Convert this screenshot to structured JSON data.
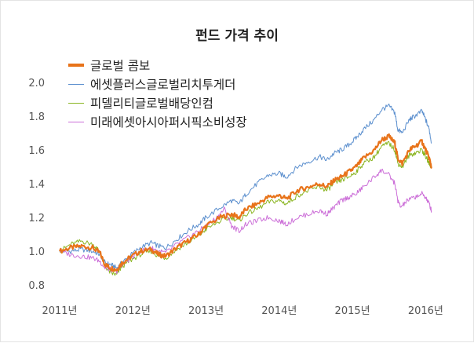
{
  "chart_data": {
    "type": "line",
    "title": "펀드 가격 추이",
    "xlabel": "",
    "ylabel": "",
    "x_ticks": [
      "2011년",
      "2012년",
      "2013년",
      "2014년",
      "2015년",
      "2016년"
    ],
    "y_ticks": [
      "2.0",
      "1.8",
      "1.6",
      "1.4",
      "1.2",
      "1.0",
      "0.8"
    ],
    "ylim": [
      0.8,
      2.0
    ],
    "xlim": [
      2011.0,
      2016.2
    ],
    "legend_position": "top-left",
    "grid": false,
    "series": [
      {
        "name": "글로벌 콤보",
        "color": "#e8731a",
        "width": 2.2,
        "points": [
          [
            2011.0,
            1.0
          ],
          [
            2011.15,
            1.02
          ],
          [
            2011.3,
            1.03
          ],
          [
            2011.45,
            1.02
          ],
          [
            2011.55,
            0.99
          ],
          [
            2011.62,
            0.92
          ],
          [
            2011.7,
            0.9
          ],
          [
            2011.78,
            0.89
          ],
          [
            2011.85,
            0.93
          ],
          [
            2011.95,
            0.96
          ],
          [
            2012.1,
            1.0
          ],
          [
            2012.25,
            1.01
          ],
          [
            2012.35,
            0.98
          ],
          [
            2012.45,
            0.97
          ],
          [
            2012.6,
            1.02
          ],
          [
            2012.75,
            1.06
          ],
          [
            2012.9,
            1.1
          ],
          [
            2013.0,
            1.15
          ],
          [
            2013.2,
            1.2
          ],
          [
            2013.35,
            1.22
          ],
          [
            2013.45,
            1.2
          ],
          [
            2013.55,
            1.25
          ],
          [
            2013.7,
            1.28
          ],
          [
            2013.85,
            1.32
          ],
          [
            2014.0,
            1.33
          ],
          [
            2014.1,
            1.31
          ],
          [
            2014.25,
            1.36
          ],
          [
            2014.4,
            1.38
          ],
          [
            2014.55,
            1.4
          ],
          [
            2014.65,
            1.38
          ],
          [
            2014.75,
            1.42
          ],
          [
            2014.85,
            1.44
          ],
          [
            2014.95,
            1.47
          ],
          [
            2015.05,
            1.5
          ],
          [
            2015.15,
            1.55
          ],
          [
            2015.3,
            1.6
          ],
          [
            2015.4,
            1.66
          ],
          [
            2015.5,
            1.68
          ],
          [
            2015.58,
            1.64
          ],
          [
            2015.62,
            1.55
          ],
          [
            2015.68,
            1.52
          ],
          [
            2015.78,
            1.6
          ],
          [
            2015.85,
            1.62
          ],
          [
            2015.95,
            1.65
          ],
          [
            2016.0,
            1.6
          ],
          [
            2016.05,
            1.55
          ],
          [
            2016.08,
            1.5
          ]
        ]
      },
      {
        "name": "에셋플러스글로벌리치투게더",
        "color": "#5b8fce",
        "width": 1.0,
        "points": [
          [
            2011.0,
            1.0
          ],
          [
            2011.15,
            1.0
          ],
          [
            2011.3,
            1.01
          ],
          [
            2011.45,
            1.0
          ],
          [
            2011.55,
            0.98
          ],
          [
            2011.62,
            0.93
          ],
          [
            2011.7,
            0.92
          ],
          [
            2011.78,
            0.9
          ],
          [
            2011.85,
            0.93
          ],
          [
            2011.95,
            0.97
          ],
          [
            2012.1,
            1.02
          ],
          [
            2012.25,
            1.05
          ],
          [
            2012.35,
            1.03
          ],
          [
            2012.45,
            1.02
          ],
          [
            2012.6,
            1.07
          ],
          [
            2012.75,
            1.12
          ],
          [
            2012.9,
            1.16
          ],
          [
            2013.0,
            1.2
          ],
          [
            2013.2,
            1.26
          ],
          [
            2013.35,
            1.3
          ],
          [
            2013.45,
            1.28
          ],
          [
            2013.55,
            1.34
          ],
          [
            2013.7,
            1.4
          ],
          [
            2013.85,
            1.45
          ],
          [
            2014.0,
            1.46
          ],
          [
            2014.1,
            1.44
          ],
          [
            2014.25,
            1.5
          ],
          [
            2014.4,
            1.53
          ],
          [
            2014.55,
            1.56
          ],
          [
            2014.65,
            1.54
          ],
          [
            2014.75,
            1.58
          ],
          [
            2014.85,
            1.6
          ],
          [
            2014.95,
            1.63
          ],
          [
            2015.05,
            1.67
          ],
          [
            2015.15,
            1.72
          ],
          [
            2015.3,
            1.78
          ],
          [
            2015.4,
            1.84
          ],
          [
            2015.5,
            1.86
          ],
          [
            2015.58,
            1.82
          ],
          [
            2015.62,
            1.72
          ],
          [
            2015.68,
            1.7
          ],
          [
            2015.78,
            1.78
          ],
          [
            2015.85,
            1.8
          ],
          [
            2015.95,
            1.83
          ],
          [
            2016.0,
            1.78
          ],
          [
            2016.05,
            1.72
          ],
          [
            2016.08,
            1.64
          ]
        ]
      },
      {
        "name": "피델리티글로벌배당인컴",
        "color": "#8ab521",
        "width": 1.0,
        "points": [
          [
            2011.0,
            1.0
          ],
          [
            2011.15,
            1.04
          ],
          [
            2011.3,
            1.06
          ],
          [
            2011.45,
            1.04
          ],
          [
            2011.55,
            1.0
          ],
          [
            2011.62,
            0.91
          ],
          [
            2011.7,
            0.87
          ],
          [
            2011.78,
            0.86
          ],
          [
            2011.85,
            0.91
          ],
          [
            2011.95,
            0.94
          ],
          [
            2012.1,
            0.98
          ],
          [
            2012.25,
            1.0
          ],
          [
            2012.35,
            0.97
          ],
          [
            2012.45,
            0.96
          ],
          [
            2012.6,
            1.01
          ],
          [
            2012.75,
            1.05
          ],
          [
            2012.9,
            1.09
          ],
          [
            2013.0,
            1.13
          ],
          [
            2013.2,
            1.18
          ],
          [
            2013.35,
            1.2
          ],
          [
            2013.45,
            1.18
          ],
          [
            2013.55,
            1.22
          ],
          [
            2013.7,
            1.25
          ],
          [
            2013.85,
            1.29
          ],
          [
            2014.0,
            1.3
          ],
          [
            2014.1,
            1.28
          ],
          [
            2014.25,
            1.33
          ],
          [
            2014.4,
            1.36
          ],
          [
            2014.55,
            1.38
          ],
          [
            2014.65,
            1.36
          ],
          [
            2014.75,
            1.4
          ],
          [
            2014.85,
            1.42
          ],
          [
            2014.95,
            1.44
          ],
          [
            2015.05,
            1.47
          ],
          [
            2015.15,
            1.52
          ],
          [
            2015.3,
            1.56
          ],
          [
            2015.4,
            1.62
          ],
          [
            2015.5,
            1.64
          ],
          [
            2015.58,
            1.6
          ],
          [
            2015.62,
            1.52
          ],
          [
            2015.68,
            1.5
          ],
          [
            2015.78,
            1.57
          ],
          [
            2015.85,
            1.58
          ],
          [
            2015.95,
            1.6
          ],
          [
            2016.0,
            1.56
          ],
          [
            2016.05,
            1.52
          ],
          [
            2016.08,
            1.5
          ]
        ]
      },
      {
        "name": "미래에셋아시아퍼시픽소비성장",
        "color": "#cc6fd8",
        "width": 1.0,
        "points": [
          [
            2011.0,
            1.0
          ],
          [
            2011.15,
            0.98
          ],
          [
            2011.3,
            0.97
          ],
          [
            2011.45,
            0.96
          ],
          [
            2011.55,
            0.94
          ],
          [
            2011.62,
            0.9
          ],
          [
            2011.7,
            0.89
          ],
          [
            2011.78,
            0.88
          ],
          [
            2011.85,
            0.92
          ],
          [
            2011.95,
            0.95
          ],
          [
            2012.1,
            1.0
          ],
          [
            2012.25,
            1.02
          ],
          [
            2012.35,
            1.0
          ],
          [
            2012.45,
            0.99
          ],
          [
            2012.6,
            1.04
          ],
          [
            2012.75,
            1.08
          ],
          [
            2012.9,
            1.12
          ],
          [
            2013.0,
            1.15
          ],
          [
            2013.15,
            1.2
          ],
          [
            2013.25,
            1.25
          ],
          [
            2013.35,
            1.15
          ],
          [
            2013.45,
            1.12
          ],
          [
            2013.55,
            1.16
          ],
          [
            2013.7,
            1.18
          ],
          [
            2013.85,
            1.2
          ],
          [
            2014.0,
            1.18
          ],
          [
            2014.1,
            1.16
          ],
          [
            2014.25,
            1.2
          ],
          [
            2014.4,
            1.22
          ],
          [
            2014.55,
            1.24
          ],
          [
            2014.65,
            1.22
          ],
          [
            2014.75,
            1.26
          ],
          [
            2014.85,
            1.3
          ],
          [
            2014.95,
            1.32
          ],
          [
            2015.05,
            1.34
          ],
          [
            2015.15,
            1.38
          ],
          [
            2015.3,
            1.44
          ],
          [
            2015.4,
            1.48
          ],
          [
            2015.5,
            1.45
          ],
          [
            2015.58,
            1.4
          ],
          [
            2015.62,
            1.3
          ],
          [
            2015.66,
            1.26
          ],
          [
            2015.75,
            1.3
          ],
          [
            2015.85,
            1.32
          ],
          [
            2015.95,
            1.34
          ],
          [
            2016.0,
            1.32
          ],
          [
            2016.05,
            1.28
          ],
          [
            2016.08,
            1.24
          ]
        ]
      }
    ]
  }
}
